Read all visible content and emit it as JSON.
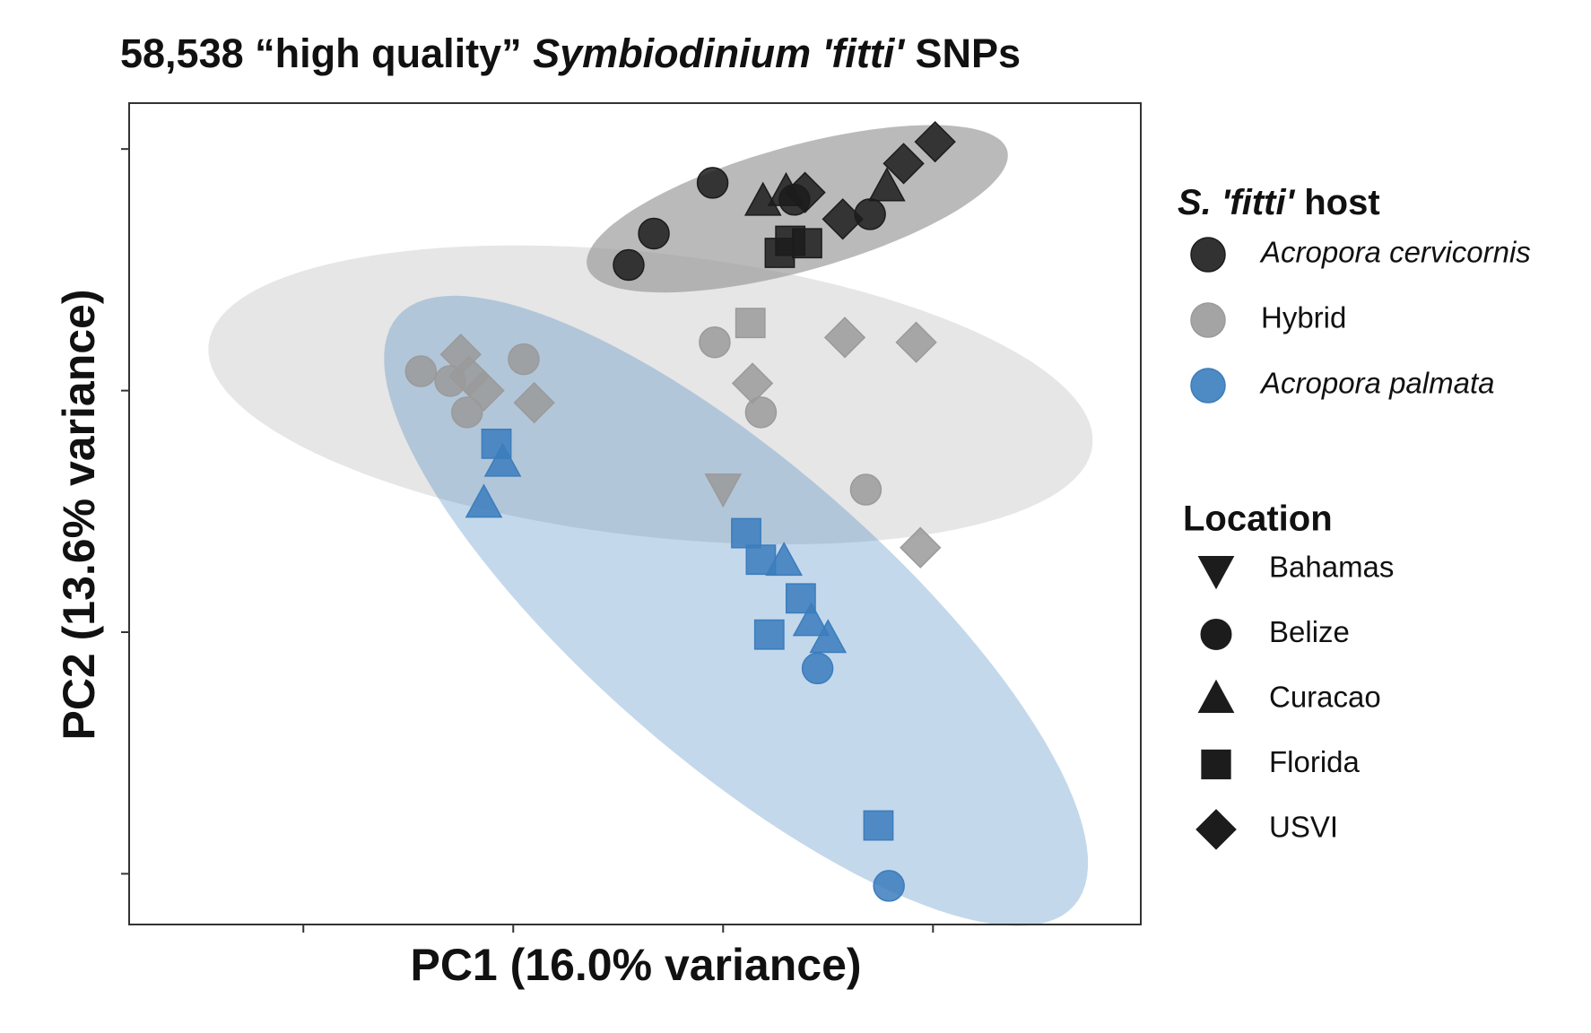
{
  "chart_data": {
    "type": "scatter",
    "title": [
      {
        "text": "58,538 “high quality” ",
        "italic": false
      },
      {
        "text": "Symbiodinium 'fitti'",
        "italic": true
      },
      {
        "text": " SNPs",
        "italic": false
      }
    ],
    "x_label": "PC1 (16.0% variance)",
    "y_label": "PC2 (13.6% variance)",
    "xlim": [
      -2.83,
      1.99
    ],
    "ylim": [
      -2.21,
      1.19
    ],
    "xticks": [
      -2,
      -1,
      0,
      1
    ],
    "yticks": [
      -2,
      -1,
      0,
      1
    ],
    "ellipse_level": 0.95,
    "color_legend_title": [
      {
        "text": "S. 'fitti'",
        "italic": true
      },
      {
        "text": " host",
        "italic": false
      }
    ],
    "shape_legend_title": "Location",
    "locations": [
      {
        "name": "Bahamas",
        "shape": "triangle-down"
      },
      {
        "name": "Belize",
        "shape": "circle"
      },
      {
        "name": "Curacao",
        "shape": "triangle"
      },
      {
        "name": "Florida",
        "shape": "square"
      },
      {
        "name": "USVI",
        "shape": "diamond"
      }
    ],
    "series": [
      {
        "name": "Acropora cervicornis",
        "italic": true,
        "color": "#1c1c1c",
        "location": [
          "Belize",
          "Belize",
          "Belize",
          "Belize",
          "Belize",
          "Curacao",
          "Curacao",
          "Curacao",
          "USVI",
          "USVI",
          "USVI",
          "USVI",
          "Florida",
          "Florida",
          "Florida"
        ],
        "x": [
          -0.05,
          -0.33,
          -0.45,
          0.7,
          0.34,
          0.19,
          0.3,
          0.78,
          0.39,
          0.57,
          0.86,
          1.01,
          0.27,
          0.4,
          0.32
        ],
        "y": [
          0.86,
          0.65,
          0.52,
          0.73,
          0.79,
          0.78,
          0.82,
          0.84,
          0.82,
          0.71,
          0.94,
          1.03,
          0.57,
          0.61,
          0.62
        ]
      },
      {
        "name": "Hybrid",
        "italic": false,
        "color": "#9a9a9a",
        "location": [
          "Belize",
          "Belize",
          "Belize",
          "Belize",
          "Belize",
          "Belize",
          "Belize",
          "USVI",
          "USVI",
          "USVI",
          "USVI",
          "USVI",
          "USVI",
          "USVI",
          "USVI",
          "Florida",
          "Bahamas"
        ],
        "x": [
          -1.44,
          -1.3,
          -1.22,
          -0.95,
          -0.04,
          0.18,
          0.68,
          -1.25,
          -1.21,
          -1.14,
          -0.9,
          0.14,
          0.58,
          0.92,
          0.94,
          0.13,
          0.0
        ],
        "y": [
          0.08,
          0.04,
          -0.09,
          0.13,
          0.2,
          -0.09,
          -0.41,
          0.15,
          0.06,
          0.0,
          -0.05,
          0.03,
          0.22,
          0.2,
          -0.65,
          0.28,
          -0.4
        ]
      },
      {
        "name": "Acropora palmata",
        "italic": true,
        "color": "#3b7dbd",
        "location": [
          "Florida",
          "Florida",
          "Florida",
          "Florida",
          "Florida",
          "Florida",
          "Curacao",
          "Curacao",
          "Curacao",
          "Curacao",
          "Curacao",
          "Belize",
          "Belize"
        ],
        "x": [
          -1.08,
          0.11,
          0.18,
          0.37,
          0.22,
          0.74,
          -1.05,
          -1.14,
          0.29,
          0.42,
          0.5,
          0.45,
          0.79
        ],
        "y": [
          -0.22,
          -0.59,
          -0.7,
          -0.86,
          -1.01,
          -1.8,
          -0.3,
          -0.47,
          -0.71,
          -0.96,
          -1.03,
          -1.15,
          -2.05
        ]
      }
    ]
  }
}
